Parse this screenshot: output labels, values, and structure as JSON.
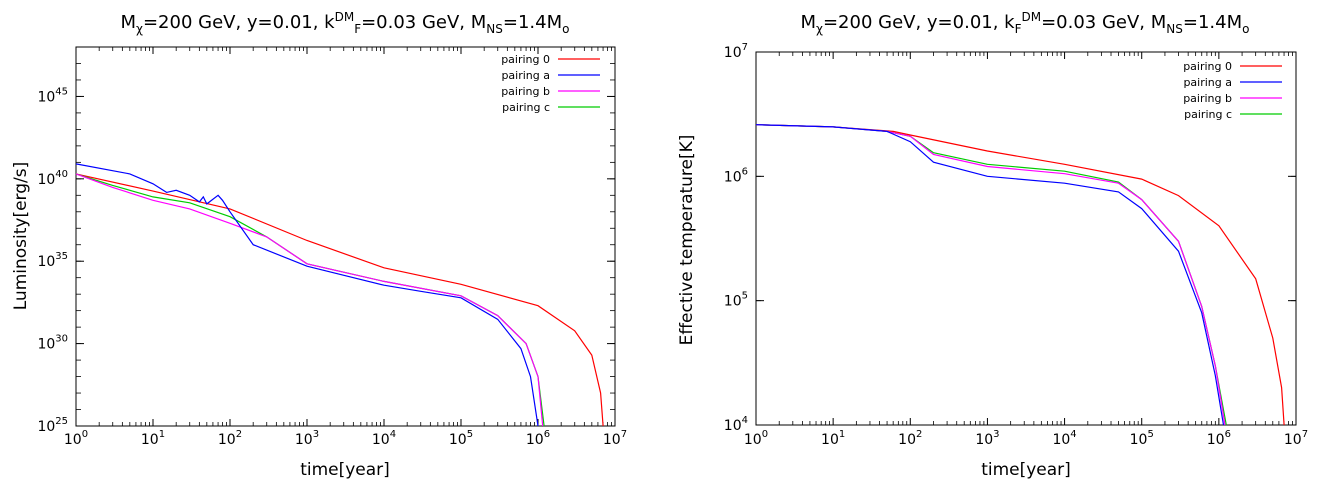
{
  "chart_data": [
    {
      "type": "line",
      "title": "Mχ=200 GeV, y=0.01, kDMF=0.03 GeV, MNS=1.4Mo",
      "xlabel": "time[year]",
      "ylabel": "Luminosity[erg/s]",
      "x_scale": "log",
      "y_scale": "log",
      "xlim": [
        1,
        10000000
      ],
      "ylim": [
        1e+25,
        1e+48
      ],
      "x_ticks": [
        {
          "base": "10",
          "exp": "0"
        },
        {
          "base": "10",
          "exp": "1"
        },
        {
          "base": "10",
          "exp": "2"
        },
        {
          "base": "10",
          "exp": "3"
        },
        {
          "base": "10",
          "exp": "4"
        },
        {
          "base": "10",
          "exp": "5"
        },
        {
          "base": "10",
          "exp": "6"
        },
        {
          "base": "10",
          "exp": "7"
        }
      ],
      "y_ticks": [
        {
          "value": 1e+25,
          "base": "10",
          "exp": "25"
        },
        {
          "value": 1e+30,
          "base": "10",
          "exp": "30"
        },
        {
          "value": 1e+35,
          "base": "10",
          "exp": "35"
        },
        {
          "value": 1e+40,
          "base": "10",
          "exp": "40"
        },
        {
          "value": 1e+45,
          "base": "10",
          "exp": "45"
        }
      ],
      "legend_position": "top-right",
      "grid": false,
      "series": [
        {
          "name": "pairing 0",
          "color": "#ff0000",
          "points": [
            [
              1,
              2e+40
            ],
            [
              10,
              1.8e+39
            ],
            [
              100,
              1.5e+38
            ],
            [
              1000,
              1.8e+36
            ],
            [
              10000,
              4e+34
            ],
            [
              100000,
              4e+33
            ],
            [
              1000000,
              2e+32
            ],
            [
              3000000,
              6e+30
            ],
            [
              5000000,
              2e+29
            ],
            [
              6500000,
              1e+27
            ],
            [
              7000000,
              1e+25
            ]
          ]
        },
        {
          "name": "pairing a",
          "color": "#0000ff",
          "points": [
            [
              1,
              8e+40
            ],
            [
              5,
              2e+40
            ],
            [
              10,
              5e+39
            ],
            [
              15,
              1.5e+39
            ],
            [
              20,
              2e+39
            ],
            [
              30,
              1e+39
            ],
            [
              40,
              4e+38
            ],
            [
              45,
              8e+38
            ],
            [
              50,
              3e+38
            ],
            [
              70,
              1e+39
            ],
            [
              80,
              5e+38
            ],
            [
              100,
              1e+38
            ],
            [
              200,
              1e+36
            ],
            [
              1000,
              5e+34
            ],
            [
              10000,
              3.5e+33
            ],
            [
              30000,
              1.5e+33
            ],
            [
              100000,
              6e+32
            ],
            [
              300000,
              3e+31
            ],
            [
              600000,
              5e+29
            ],
            [
              800000,
              1e+28
            ],
            [
              1000000,
              1e+25
            ]
          ]
        },
        {
          "name": "pairing b",
          "color": "#ff00ff",
          "points": [
            [
              1,
              2e+40
            ],
            [
              3,
              3e+39
            ],
            [
              10,
              5e+38
            ],
            [
              30,
              1.5e+38
            ],
            [
              100,
              2e+37
            ],
            [
              300,
              3e+36
            ],
            [
              1000,
              7e+34
            ],
            [
              10000,
              6e+33
            ],
            [
              100000,
              8e+32
            ],
            [
              300000,
              5e+31
            ],
            [
              700000,
              1e+30
            ],
            [
              1000000,
              1e+28
            ],
            [
              1150000,
              1e+25
            ]
          ]
        },
        {
          "name": "pairing c",
          "color": "#00cc00",
          "points": [
            [
              1,
              2e+40
            ],
            [
              3,
              4e+39
            ],
            [
              10,
              8e+38
            ],
            [
              30,
              3.5e+38
            ],
            [
              100,
              5e+37
            ],
            [
              300,
              3e+36
            ],
            [
              1000,
              7e+34
            ],
            [
              10000,
              6e+33
            ],
            [
              100000,
              8e+32
            ],
            [
              300000,
              5e+31
            ],
            [
              700000,
              1e+30
            ],
            [
              1000000,
              1e+28
            ],
            [
              1200000,
              1e+25
            ]
          ]
        }
      ]
    },
    {
      "type": "line",
      "title": "Mχ=200 GeV, y=0.01, kFDM=0.03 GeV, MNS=1.4Mo",
      "xlabel": "time[year]",
      "ylabel": "Effective temperature[K]",
      "x_scale": "log",
      "y_scale": "log",
      "xlim": [
        1,
        10000000
      ],
      "ylim": [
        10000,
        10000000
      ],
      "x_ticks": [
        {
          "base": "10",
          "exp": "0"
        },
        {
          "base": "10",
          "exp": "1"
        },
        {
          "base": "10",
          "exp": "2"
        },
        {
          "base": "10",
          "exp": "3"
        },
        {
          "base": "10",
          "exp": "4"
        },
        {
          "base": "10",
          "exp": "5"
        },
        {
          "base": "10",
          "exp": "6"
        },
        {
          "base": "10",
          "exp": "7"
        }
      ],
      "y_ticks": [
        {
          "value": 10000,
          "base": "10",
          "exp": "4"
        },
        {
          "value": 100000,
          "base": "10",
          "exp": "5"
        },
        {
          "value": 1000000,
          "base": "10",
          "exp": "6"
        },
        {
          "value": 10000000,
          "base": "10",
          "exp": "7"
        }
      ],
      "legend_position": "top-right",
      "grid": false,
      "series": [
        {
          "name": "pairing 0",
          "color": "#ff0000",
          "points": [
            [
              1,
              2600000.0
            ],
            [
              10,
              2500000.0
            ],
            [
              60,
              2300000.0
            ],
            [
              100,
              2150000.0
            ],
            [
              1000,
              1600000.0
            ],
            [
              10000,
              1250000.0
            ],
            [
              100000,
              950000.0
            ],
            [
              300000,
              700000.0
            ],
            [
              1000000,
              400000.0
            ],
            [
              3000000,
              150000.0
            ],
            [
              5000000,
              50000.0
            ],
            [
              6500000,
              20000.0
            ],
            [
              7000000,
              10000.0
            ]
          ]
        },
        {
          "name": "pairing a",
          "color": "#0000ff",
          "points": [
            [
              1,
              2600000.0
            ],
            [
              10,
              2500000.0
            ],
            [
              50,
              2300000.0
            ],
            [
              100,
              1900000.0
            ],
            [
              200,
              1300000.0
            ],
            [
              1000,
              1000000.0
            ],
            [
              10000,
              880000.0
            ],
            [
              50000,
              750000.0
            ],
            [
              100000,
              550000.0
            ],
            [
              300000,
              250000.0
            ],
            [
              600000,
              80000.0
            ],
            [
              900000,
              25000.0
            ],
            [
              1150000,
              10000.0
            ]
          ]
        },
        {
          "name": "pairing b",
          "color": "#ff00ff",
          "points": [
            [
              1,
              2600000.0
            ],
            [
              10,
              2500000.0
            ],
            [
              50,
              2300000.0
            ],
            [
              100,
              2100000.0
            ],
            [
              200,
              1500000.0
            ],
            [
              1000,
              1200000.0
            ],
            [
              10000,
              1050000.0
            ],
            [
              50000,
              880000.0
            ],
            [
              100000,
              650000.0
            ],
            [
              300000,
              300000.0
            ],
            [
              600000,
              90000.0
            ],
            [
              900000,
              30000.0
            ],
            [
              1200000,
              10000.0
            ]
          ]
        },
        {
          "name": "pairing c",
          "color": "#00cc00",
          "points": [
            [
              1,
              2600000.0
            ],
            [
              10,
              2500000.0
            ],
            [
              50,
              2300000.0
            ],
            [
              100,
              2100000.0
            ],
            [
              200,
              1550000.0
            ],
            [
              1000,
              1250000.0
            ],
            [
              10000,
              1100000.0
            ],
            [
              50000,
              900000.0
            ],
            [
              100000,
              650000.0
            ],
            [
              300000,
              300000.0
            ],
            [
              600000,
              90000.0
            ],
            [
              900000,
              30000.0
            ],
            [
              1250000,
              10000.0
            ]
          ]
        }
      ]
    }
  ]
}
